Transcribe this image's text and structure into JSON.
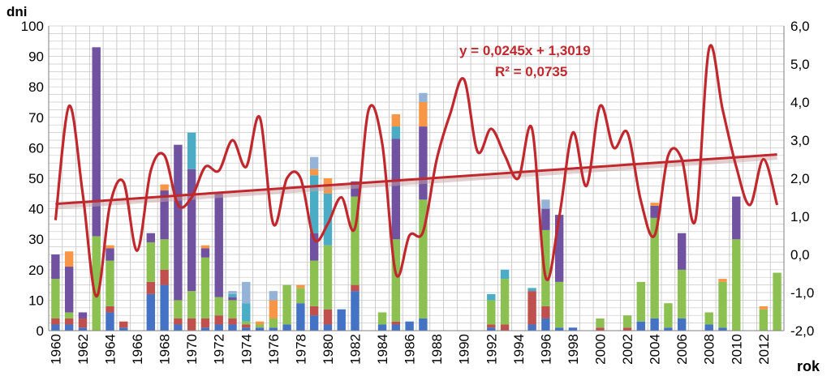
{
  "chart_data": {
    "type": "bar",
    "stacked": true,
    "combined_with": "line",
    "left_axis": {
      "label": "dni",
      "ylim": [
        0,
        100
      ],
      "ticks": [
        "0",
        "10",
        "20",
        "30",
        "40",
        "50",
        "60",
        "70",
        "80",
        "90",
        "100"
      ]
    },
    "right_axis": {
      "ylim": [
        -2.0,
        6.0
      ],
      "ticks": [
        "-2,0",
        "-1,0",
        "0,0",
        "1,0",
        "2,0",
        "3,0",
        "4,0",
        "5,0",
        "6,0"
      ]
    },
    "x_axis": {
      "label": "rok",
      "tick_labels": [
        "1960",
        "1962",
        "1964",
        "1966",
        "1968",
        "1970",
        "1972",
        "1974",
        "1976",
        "1978",
        "1980",
        "1982",
        "1984",
        "1986",
        "1988",
        "1990",
        "1992",
        "1994",
        "1996",
        "1998",
        "2000",
        "2002",
        "2004",
        "2006",
        "2008",
        "2010",
        "2012"
      ]
    },
    "grid": true,
    "colors": {
      "blue": "#4472c4",
      "red": "#c0504d",
      "green": "#8cc152",
      "purple": "#7052a0",
      "cyan": "#4bacc6",
      "orange": "#f79646",
      "lightblue": "#95b3d7",
      "line": "#c0282d",
      "trend": "#c0282d"
    },
    "years": [
      1960,
      1961,
      1962,
      1963,
      1964,
      1965,
      1966,
      1967,
      1968,
      1969,
      1970,
      1971,
      1972,
      1973,
      1974,
      1975,
      1976,
      1977,
      1978,
      1979,
      1980,
      1981,
      1982,
      1983,
      1984,
      1985,
      1986,
      1987,
      1988,
      1989,
      1990,
      1991,
      1992,
      1993,
      1994,
      1995,
      1996,
      1997,
      1998,
      1999,
      2000,
      2001,
      2002,
      2003,
      2004,
      2005,
      2006,
      2007,
      2008,
      2009,
      2010,
      2011,
      2012,
      2013
    ],
    "bar_series": [
      {
        "color": "blue",
        "values": [
          2,
          2,
          1,
          0,
          6,
          1,
          0,
          12,
          15,
          2,
          0,
          1,
          2,
          2,
          1,
          1,
          1,
          2,
          9,
          5,
          2,
          7,
          13,
          0,
          2,
          2,
          3,
          4,
          0,
          0,
          0,
          0,
          1,
          0,
          0,
          2,
          4,
          1,
          1,
          0,
          0,
          0,
          0,
          3,
          4,
          1,
          4,
          0,
          2,
          1,
          0,
          0,
          0,
          0
        ]
      },
      {
        "color": "red",
        "values": [
          2,
          2,
          3,
          0,
          2,
          2,
          0,
          4,
          5,
          2,
          4,
          3,
          3,
          2,
          1,
          0,
          0,
          0,
          0,
          3,
          5,
          0,
          2,
          0,
          0,
          1,
          0,
          0,
          0,
          0,
          0,
          0,
          1,
          2,
          0,
          11,
          4,
          0,
          0,
          0,
          1,
          0,
          1,
          0,
          0,
          0,
          0,
          0,
          0,
          0,
          0,
          0,
          0,
          0
        ]
      },
      {
        "color": "green",
        "values": [
          13,
          2,
          0,
          31,
          15,
          0,
          0,
          13,
          10,
          6,
          9,
          20,
          6,
          6,
          1,
          1,
          3,
          13,
          5,
          15,
          21,
          0,
          29,
          0,
          4,
          27,
          0,
          39,
          0,
          0,
          0,
          0,
          8,
          15,
          0,
          0,
          25,
          15,
          0,
          0,
          3,
          0,
          4,
          13,
          33,
          8,
          16,
          0,
          4,
          15,
          30,
          0,
          7,
          19
        ]
      },
      {
        "color": "purple",
        "values": [
          8,
          15,
          2,
          62,
          4,
          0,
          0,
          3,
          16,
          51,
          40,
          3,
          34,
          1,
          0,
          0,
          0,
          0,
          0,
          9,
          0,
          0,
          5,
          0,
          0,
          33,
          0,
          24,
          0,
          0,
          0,
          0,
          0,
          0,
          0,
          0,
          7,
          22,
          0,
          0,
          0,
          0,
          0,
          0,
          4,
          0,
          12,
          0,
          0,
          0,
          14,
          0,
          0,
          0
        ]
      },
      {
        "color": "cyan",
        "values": [
          0,
          0,
          0,
          0,
          0,
          0,
          0,
          0,
          0,
          0,
          12,
          0,
          0,
          1,
          6,
          0,
          0,
          0,
          0,
          19,
          17,
          0,
          0,
          0,
          0,
          4,
          0,
          0,
          0,
          0,
          0,
          0,
          2,
          3,
          0,
          1,
          0,
          0,
          0,
          0,
          0,
          0,
          0,
          0,
          0,
          0,
          0,
          0,
          0,
          0,
          0,
          0,
          0,
          0
        ]
      },
      {
        "color": "orange",
        "values": [
          0,
          5,
          0,
          0,
          1,
          0,
          0,
          0,
          2,
          0,
          0,
          1,
          0,
          0,
          0,
          1,
          6,
          0,
          1,
          2,
          5,
          0,
          0,
          0,
          0,
          4,
          0,
          8,
          0,
          0,
          0,
          0,
          0,
          0,
          0,
          0,
          0,
          0,
          0,
          0,
          0,
          0,
          0,
          0,
          1,
          0,
          0,
          0,
          0,
          1,
          0,
          0,
          1,
          0
        ]
      },
      {
        "color": "lightblue",
        "values": [
          0,
          0,
          0,
          0,
          0,
          0,
          0,
          0,
          0,
          0,
          0,
          0,
          0,
          1,
          7,
          0,
          3,
          0,
          0,
          4,
          0,
          0,
          0,
          0,
          0,
          0,
          0,
          3,
          0,
          0,
          0,
          0,
          0,
          0,
          0,
          0,
          3,
          0,
          0,
          0,
          0,
          0,
          0,
          0,
          0,
          0,
          0,
          0,
          0,
          0,
          0,
          0,
          0,
          0
        ]
      }
    ],
    "line_series": {
      "axis": "right",
      "color": "line",
      "x": [
        1960,
        1961,
        1962,
        1963,
        1964,
        1965,
        1966,
        1967,
        1968,
        1969,
        1970,
        1971,
        1972,
        1973,
        1974,
        1975,
        1976,
        1977,
        1978,
        1979,
        1980,
        1981,
        1982,
        1983,
        1984,
        1985,
        1986,
        1987,
        1988,
        1989,
        1990,
        1991,
        1992,
        1993,
        1994,
        1995,
        1996,
        1997,
        1998,
        1999,
        2000,
        2001,
        2002,
        2003,
        2004,
        2005,
        2006,
        2007,
        2008,
        2009,
        2010,
        2011,
        2012,
        2013
      ],
      "values": [
        0.9,
        3.9,
        1.6,
        -1.1,
        1.3,
        1.9,
        0.1,
        2.2,
        2.6,
        1.3,
        1.5,
        2.3,
        2.2,
        3.0,
        2.3,
        3.6,
        0.8,
        2.0,
        2.0,
        0.4,
        0.8,
        1.5,
        0.7,
        3.8,
        2.9,
        -0.5,
        0.5,
        0.6,
        2.5,
        3.7,
        4.6,
        2.7,
        3.3,
        2.6,
        2.0,
        3.3,
        -0.6,
        1.0,
        3.2,
        1.8,
        3.9,
        2.8,
        3.2,
        1.4,
        0.5,
        2.6,
        2.5,
        0.9,
        5.4,
        3.8,
        2.3,
        1.3,
        2.5,
        1.3
      ]
    },
    "trend_line": {
      "axis": "right",
      "color": "trend",
      "slope": 0.0245,
      "intercept": 1.3019,
      "equation": "y = 0,0245x + 1,3019",
      "r2": "R² = 0,0735"
    }
  }
}
